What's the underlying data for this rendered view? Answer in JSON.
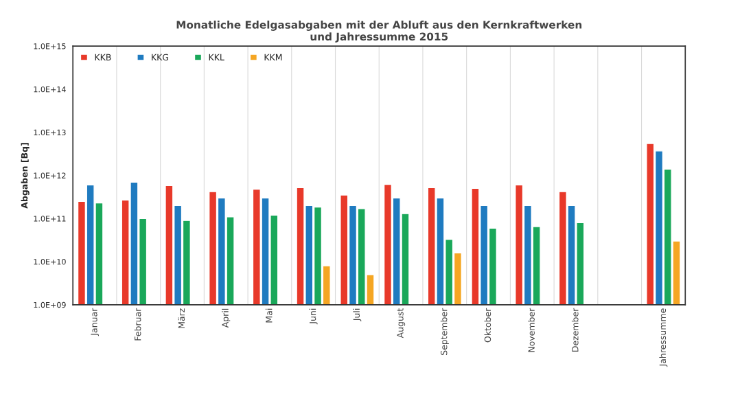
{
  "chart_data": {
    "type": "bar",
    "title": "Monatliche Edelgasabgaben mit der Abluft aus den Kernkraftwerken\nund Jahressumme 2015",
    "ylabel": "Abgaben [Bq]",
    "categories": [
      "Januar",
      "Februar",
      "März",
      "April",
      "Mai",
      "Juni",
      "Juli",
      "August",
      "September",
      "Oktober",
      "November",
      "Dezember",
      null,
      "Jahressumme"
    ],
    "series": [
      {
        "name": "KKB",
        "color": "#e8392a",
        "values": [
          250000000000.0,
          270000000000.0,
          580000000000.0,
          420000000000.0,
          480000000000.0,
          520000000000.0,
          350000000000.0,
          620000000000.0,
          520000000000.0,
          500000000000.0,
          600000000000.0,
          420000000000.0,
          null,
          5500000000000.0
        ]
      },
      {
        "name": "KKG",
        "color": "#1f7bc0",
        "values": [
          600000000000.0,
          700000000000.0,
          200000000000.0,
          300000000000.0,
          300000000000.0,
          200000000000.0,
          200000000000.0,
          300000000000.0,
          300000000000.0,
          200000000000.0,
          200000000000.0,
          200000000000.0,
          null,
          3700000000000.0
        ]
      },
      {
        "name": "KKL",
        "color": "#1aa85a",
        "values": [
          230000000000.0,
          100000000000.0,
          90000000000.0,
          110000000000.0,
          120000000000.0,
          185000000000.0,
          170000000000.0,
          130000000000.0,
          33000000000.0,
          60000000000.0,
          65000000000.0,
          80000000000.0,
          null,
          1400000000000.0
        ]
      },
      {
        "name": "KKM",
        "color": "#f5a623",
        "values": [
          null,
          null,
          null,
          null,
          null,
          8000000000.0,
          5000000000.0,
          null,
          16000000000.0,
          null,
          null,
          null,
          null,
          30000000000.0
        ]
      }
    ],
    "log": "y",
    "ylim": [
      1000000000.0,
      1000000000000000.0
    ],
    "yticks": [
      {
        "value": 1000000000.0,
        "label": "1.0E+09"
      },
      {
        "value": 10000000000.0,
        "label": "1.0E+10"
      },
      {
        "value": 100000000000.0,
        "label": "1.0E+11"
      },
      {
        "value": 1000000000000.0,
        "label": "1.0E+12"
      },
      {
        "value": 10000000000000.0,
        "label": "1.0E+13"
      },
      {
        "value": 100000000000000.0,
        "label": "1.0E+14"
      },
      {
        "value": 1000000000000000.0,
        "label": "1.0E+15"
      }
    ],
    "grid": "x",
    "legend": "top left"
  }
}
